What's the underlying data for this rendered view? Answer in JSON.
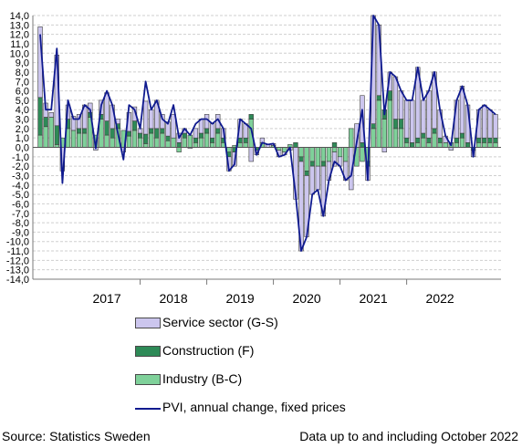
{
  "chart_data": {
    "type": "bar",
    "stacked": true,
    "grid": true,
    "ylim": [
      -14,
      14
    ],
    "yticks": [
      "14,0",
      "13,0",
      "12,0",
      "11,0",
      "10,0",
      "9,0",
      "8,0",
      "7,0",
      "6,0",
      "5,0",
      "4,0",
      "3,0",
      "2,0",
      "1,0",
      "0,0",
      "-1,0",
      "-2,0",
      "-3,0",
      "-4,0",
      "-5,0",
      "-6,0",
      "-7,0",
      "-8,0",
      "-9,0",
      "-10,0",
      "-11,0",
      "-12,0",
      "-13,0",
      "-14,0"
    ],
    "year_labels": [
      "2017",
      "2018",
      "2019",
      "2020",
      "2021",
      "2022"
    ],
    "series": [
      {
        "name": "Service sector (G-S)",
        "color": "#ccc6ee",
        "values": [
          7.5,
          1.5,
          0.5,
          7.5,
          -2.5,
          1.5,
          1.5,
          1.5,
          2.5,
          1.0,
          -0.3,
          1.5,
          3.0,
          2.5,
          0.5,
          -0.5,
          2.0,
          1.5,
          0.5,
          3.5,
          2.0,
          3.0,
          1.5,
          1.5,
          2.5,
          1.0,
          0.5,
          -0.1,
          1.0,
          1.5,
          1.5,
          1.5,
          1.5,
          1.0,
          -1.5,
          -1.5,
          2.0,
          1.5,
          -1.5,
          -0.5,
          0.5,
          0.3,
          0.2,
          -0.7,
          -0.3,
          -0.3,
          -5.5,
          -9.5,
          -6.5,
          -3.0,
          -2.5,
          -5.3,
          -2.0,
          -1.5,
          -1.0,
          -2.0,
          -4.5,
          2.5,
          5.0,
          -1.5,
          11.5,
          7.5,
          -0.5,
          2.0,
          4.5,
          3.0,
          4.0,
          4.5,
          7.5,
          3.5,
          5.0,
          6.0,
          3.0,
          0.7,
          -0.3,
          4.0,
          5.0,
          4.0,
          -0.7,
          3.0,
          3.5,
          3.0,
          2.5
        ]
      },
      {
        "name": "Construction (F)",
        "color": "#2e8a57",
        "values": [
          4.0,
          1.0,
          0.0,
          2.0,
          0.0,
          1.0,
          0.0,
          0.5,
          0.5,
          0.5,
          0.0,
          0.5,
          1.5,
          1.0,
          0.5,
          0.0,
          0.5,
          1.0,
          0.5,
          1.0,
          0.5,
          1.0,
          0.5,
          0.5,
          0.0,
          0.5,
          0.5,
          0.0,
          0.5,
          0.5,
          0.5,
          0.5,
          0.5,
          0.5,
          -0.5,
          -0.5,
          0.5,
          0.5,
          0.5,
          -0.3,
          0.0,
          0.0,
          0.0,
          0.0,
          0.0,
          0.0,
          0.5,
          -0.5,
          -0.5,
          -0.5,
          0.0,
          -0.5,
          0.0,
          0.5,
          0.0,
          0.0,
          0.0,
          0.0,
          0.5,
          -0.5,
          0.5,
          0.5,
          1.0,
          1.0,
          1.0,
          1.0,
          0.5,
          0.5,
          0.5,
          0.5,
          0.5,
          0.5,
          0.5,
          0.0,
          0.0,
          0.5,
          0.5,
          0.5,
          0.0,
          0.5,
          0.5,
          0.5,
          0.5
        ]
      },
      {
        "name": "Industry (B-C)",
        "color": "#7fd19a",
        "values": [
          1.3,
          2.2,
          3.2,
          0.3,
          1.0,
          2.0,
          1.8,
          1.5,
          1.5,
          3.2,
          1.3,
          3.0,
          1.3,
          1.0,
          2.0,
          1.8,
          1.2,
          1.8,
          1.0,
          0.4,
          1.5,
          1.0,
          1.5,
          0.7,
          1.0,
          -0.5,
          1.0,
          1.3,
          0.5,
          1.0,
          1.5,
          0.5,
          1.5,
          0.5,
          -0.5,
          0.2,
          0.5,
          0.5,
          3.0,
          0.0,
          0.5,
          0.0,
          0.2,
          -0.3,
          -0.5,
          0.3,
          0.0,
          -1.0,
          -2.5,
          -1.5,
          -2.0,
          -1.5,
          -1.5,
          -0.5,
          -1.0,
          -1.5,
          2.0,
          -2.0,
          -1.5,
          -1.5,
          2.0,
          5.0,
          3.0,
          5.0,
          2.0,
          2.0,
          0.5,
          0.0,
          0.5,
          1.0,
          0.5,
          1.5,
          0.5,
          0.5,
          0.5,
          0.5,
          1.0,
          0.0,
          -0.3,
          0.5,
          0.5,
          0.5,
          0.5
        ]
      }
    ],
    "line": {
      "name": "PVI, annual change, fixed prices",
      "color": "#0f1a8f",
      "values": [
        12.0,
        4.0,
        4.0,
        10.5,
        -3.8,
        5.0,
        3.0,
        3.0,
        4.5,
        4.0,
        -0.1,
        4.5,
        6.0,
        4.5,
        1.5,
        -1.3,
        4.5,
        4.0,
        2.0,
        7.0,
        4.0,
        5.0,
        3.0,
        2.5,
        4.5,
        1.0,
        2.0,
        1.3,
        2.5,
        3.0,
        3.0,
        2.5,
        3.0,
        2.0,
        -2.5,
        -1.8,
        3.0,
        2.5,
        2.0,
        -0.8,
        0.5,
        0.3,
        0.4,
        -1.0,
        -0.8,
        0.0,
        -5.0,
        -11.0,
        -9.5,
        -5.0,
        -4.5,
        -7.3,
        -3.5,
        -1.5,
        -2.0,
        -3.5,
        -3.0,
        0.5,
        4.0,
        -3.5,
        14.0,
        13.0,
        3.5,
        8.0,
        7.5,
        6.0,
        5.0,
        5.0,
        8.5,
        5.0,
        6.0,
        8.0,
        4.0,
        1.2,
        0.2,
        5.0,
        6.5,
        4.5,
        -1.0,
        4.0,
        4.5,
        4.0,
        3.5
      ]
    }
  },
  "legend": [
    {
      "label": "Service sector (G-S)",
      "color": "#ccc6ee",
      "kind": "bar"
    },
    {
      "label": "Construction (F)",
      "color": "#2e8a57",
      "kind": "bar"
    },
    {
      "label": "Industry (B-C)",
      "color": "#7fd19a",
      "kind": "bar"
    },
    {
      "label": "PVI, annual change, fixed prices",
      "color": "#0f1a8f",
      "kind": "line"
    }
  ],
  "footer": {
    "source": "Source: Statistics Sweden",
    "note": "Data up to and including October 2022"
  }
}
